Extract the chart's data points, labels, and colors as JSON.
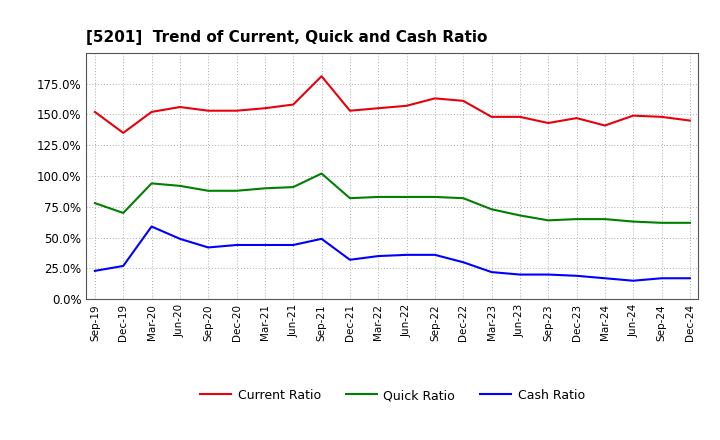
{
  "title": "[5201]  Trend of Current, Quick and Cash Ratio",
  "labels": [
    "Sep-19",
    "Dec-19",
    "Mar-20",
    "Jun-20",
    "Sep-20",
    "Dec-20",
    "Mar-21",
    "Jun-21",
    "Sep-21",
    "Dec-21",
    "Mar-22",
    "Jun-22",
    "Sep-22",
    "Dec-22",
    "Mar-23",
    "Jun-23",
    "Sep-23",
    "Dec-23",
    "Mar-24",
    "Jun-24",
    "Sep-24",
    "Dec-24"
  ],
  "current_ratio": [
    152.0,
    135.0,
    152.0,
    156.0,
    153.0,
    153.0,
    155.0,
    158.0,
    181.0,
    153.0,
    155.0,
    157.0,
    163.0,
    161.0,
    148.0,
    148.0,
    143.0,
    147.0,
    141.0,
    149.0,
    148.0,
    145.0
  ],
  "quick_ratio": [
    78.0,
    70.0,
    94.0,
    92.0,
    88.0,
    88.0,
    90.0,
    91.0,
    102.0,
    82.0,
    83.0,
    83.0,
    83.0,
    82.0,
    73.0,
    68.0,
    64.0,
    65.0,
    65.0,
    63.0,
    62.0,
    62.0
  ],
  "cash_ratio": [
    23.0,
    27.0,
    59.0,
    49.0,
    42.0,
    44.0,
    44.0,
    44.0,
    49.0,
    32.0,
    35.0,
    36.0,
    36.0,
    30.0,
    22.0,
    20.0,
    20.0,
    19.0,
    17.0,
    15.0,
    17.0,
    17.0
  ],
  "current_color": "#e8000d",
  "quick_color": "#008000",
  "cash_color": "#0000ff",
  "bg_color": "#ffffff",
  "plot_bg_color": "#ffffff",
  "grid_color": "#aaaaaa",
  "ylim": [
    0,
    200
  ],
  "yticks": [
    0,
    25,
    50,
    75,
    100,
    125,
    150,
    175
  ],
  "ytick_labels": [
    "0.0%",
    "25.0%",
    "50.0%",
    "75.0%",
    "100.0%",
    "125.0%",
    "150.0%",
    "175.0%"
  ]
}
